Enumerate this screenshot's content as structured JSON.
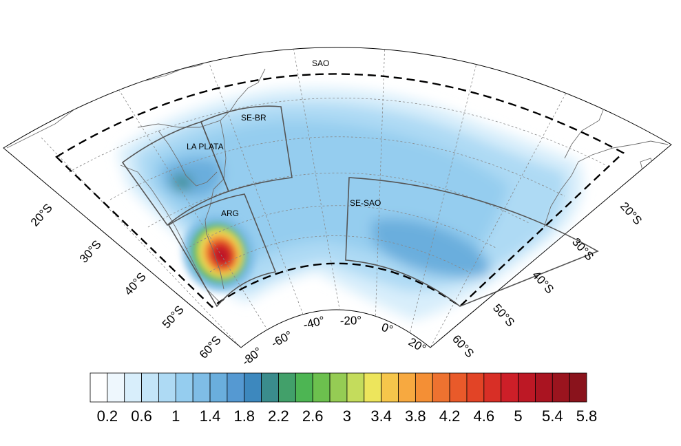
{
  "map": {
    "regions": [
      {
        "id": "sao",
        "label": "SAO"
      },
      {
        "id": "se-br",
        "label": "SE-BR"
      },
      {
        "id": "la-plata",
        "label": "LA PLATA"
      },
      {
        "id": "arg",
        "label": "ARG"
      },
      {
        "id": "se-sao",
        "label": "SE-SAO"
      }
    ],
    "lat_labels_left": [
      "20°S",
      "30°S",
      "40°S",
      "50°S",
      "60°S"
    ],
    "lat_labels_right": [
      "20°S",
      "30°S",
      "40°S",
      "50°S",
      "60°S"
    ],
    "lon_labels": [
      "-80°",
      "-60°",
      "-40°",
      "-20°",
      "0°",
      "20°"
    ],
    "projection": "conic, fan-shaped South Atlantic domain",
    "graticule": "dashed grey lines every 10° lat / 20° lon",
    "colors": {
      "coastline": "#6e6e6e",
      "box": "#555555",
      "domain_outline": "#000000",
      "graticule": "#888888"
    }
  },
  "colorbar": {
    "levels": [
      0.2,
      0.4,
      0.6,
      0.8,
      1.0,
      1.2,
      1.4,
      1.6,
      1.8,
      2.0,
      2.2,
      2.4,
      2.6,
      2.8,
      3.0,
      3.2,
      3.4,
      3.6,
      3.8,
      4.0,
      4.2,
      4.4,
      4.6,
      4.8,
      5.0,
      5.2,
      5.4,
      5.6,
      5.8,
      6.0
    ],
    "tick_labels": [
      "0.2",
      "0.6",
      "1",
      "1.4",
      "1.8",
      "2.2",
      "2.6",
      "3",
      "3.4",
      "3.8",
      "4.2",
      "4.6",
      "5",
      "5.4",
      "5.8"
    ],
    "colors": [
      "#ffffff",
      "#eef7fd",
      "#d8eefb",
      "#c4e5f8",
      "#aedaf4",
      "#95cdef",
      "#7fbde6",
      "#6aaedd",
      "#5599d2",
      "#3d88be",
      "#3a8c8c",
      "#42a06a",
      "#4db553",
      "#6cc04e",
      "#95cc54",
      "#c4dc5c",
      "#ede55c",
      "#f6c64b",
      "#f7a940",
      "#f48f35",
      "#ee7230",
      "#e95a2a",
      "#e24426",
      "#d82f26",
      "#cd1f28",
      "#bd1825",
      "#aa1421",
      "#9a141e",
      "#8a131c"
    ]
  }
}
